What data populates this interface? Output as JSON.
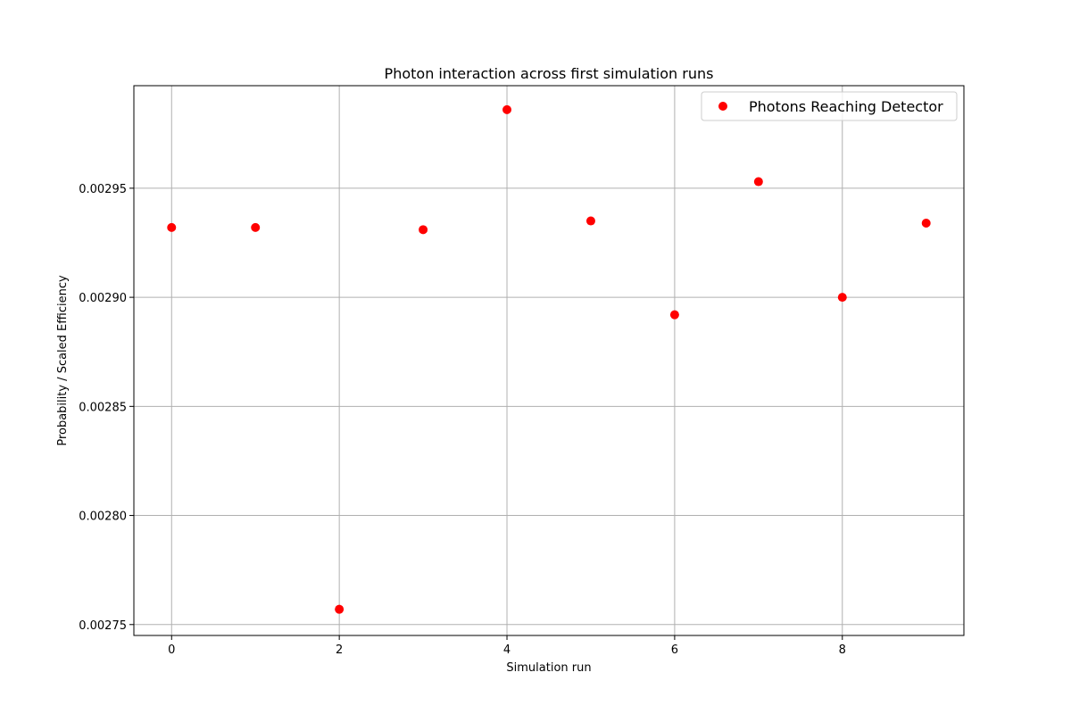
{
  "chart_data": {
    "type": "scatter",
    "title": "Photon interaction across first simulation runs",
    "xlabel": "Simulation run",
    "ylabel": "Probability / Scaled Efficiency",
    "xlim": [
      -0.45,
      9.45
    ],
    "ylim": [
      0.002745,
      0.002997
    ],
    "xticks": [
      0,
      2,
      4,
      6,
      8
    ],
    "yticks": [
      0.00275,
      0.0028,
      0.00285,
      0.0029,
      0.00295
    ],
    "xtick_labels": [
      "0",
      "2",
      "4",
      "6",
      "8"
    ],
    "ytick_labels": [
      "0.00275",
      "0.00280",
      "0.00285",
      "0.00290",
      "0.00295"
    ],
    "grid": true,
    "legend_position": "top-right",
    "series": [
      {
        "name": "Photons Reaching Detector",
        "color": "#ff0000",
        "marker": "circle",
        "x": [
          0,
          1,
          2,
          3,
          4,
          5,
          6,
          7,
          8,
          9
        ],
        "y": [
          0.002932,
          0.002932,
          0.002757,
          0.002931,
          0.002986,
          0.002935,
          0.002892,
          0.002953,
          0.0029,
          0.002934
        ]
      }
    ]
  }
}
